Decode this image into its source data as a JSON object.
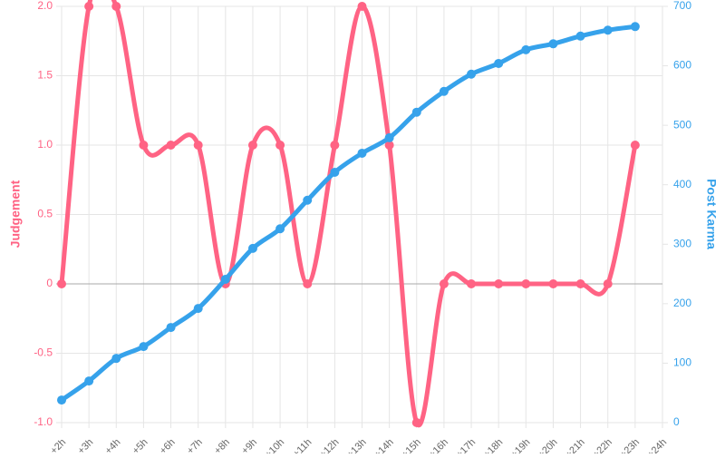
{
  "chart_data": {
    "type": "line",
    "categories": [
      "+2h",
      "+3h",
      "+4h",
      "+5h",
      "+6h",
      "+7h",
      "+8h",
      "+9h",
      "+10h",
      "+11h",
      "+12h",
      "+13h",
      "+14h",
      "+15h",
      "+16h",
      "+17h",
      "+18h",
      "+19h",
      "+20h",
      "+21h",
      "+22h",
      "+23h",
      "+24h"
    ],
    "series": [
      {
        "name": "Judgement",
        "color": "#ff6384",
        "axis": "y",
        "values": [
          0,
          2,
          2,
          1,
          1,
          1,
          0,
          1,
          1,
          0,
          1,
          2,
          1,
          -1,
          0,
          0,
          0,
          0,
          0,
          0,
          0,
          1,
          null
        ]
      },
      {
        "name": "Post Karma",
        "color": "#36a2eb",
        "axis": "y2",
        "values": [
          38,
          70,
          108,
          128,
          160,
          192,
          241,
          293,
          326,
          374,
          421,
          453,
          479,
          522,
          557,
          586,
          604,
          627,
          637,
          650,
          660,
          666,
          null
        ]
      }
    ],
    "ylabel": "Judgement",
    "y2label": "Post Karma",
    "ylim": [
      -1,
      2
    ],
    "yticks": [
      {
        "value": -1,
        "label": "-1.0"
      },
      -0.5,
      0,
      0.5,
      {
        "value": 1,
        "label": "1.0"
      },
      1.5,
      {
        "value": 2,
        "label": "2.0"
      }
    ],
    "y2lim": [
      0,
      700
    ],
    "y2ticks": [
      0,
      100,
      200,
      300,
      400,
      500,
      600,
      700
    ],
    "grid": true
  }
}
